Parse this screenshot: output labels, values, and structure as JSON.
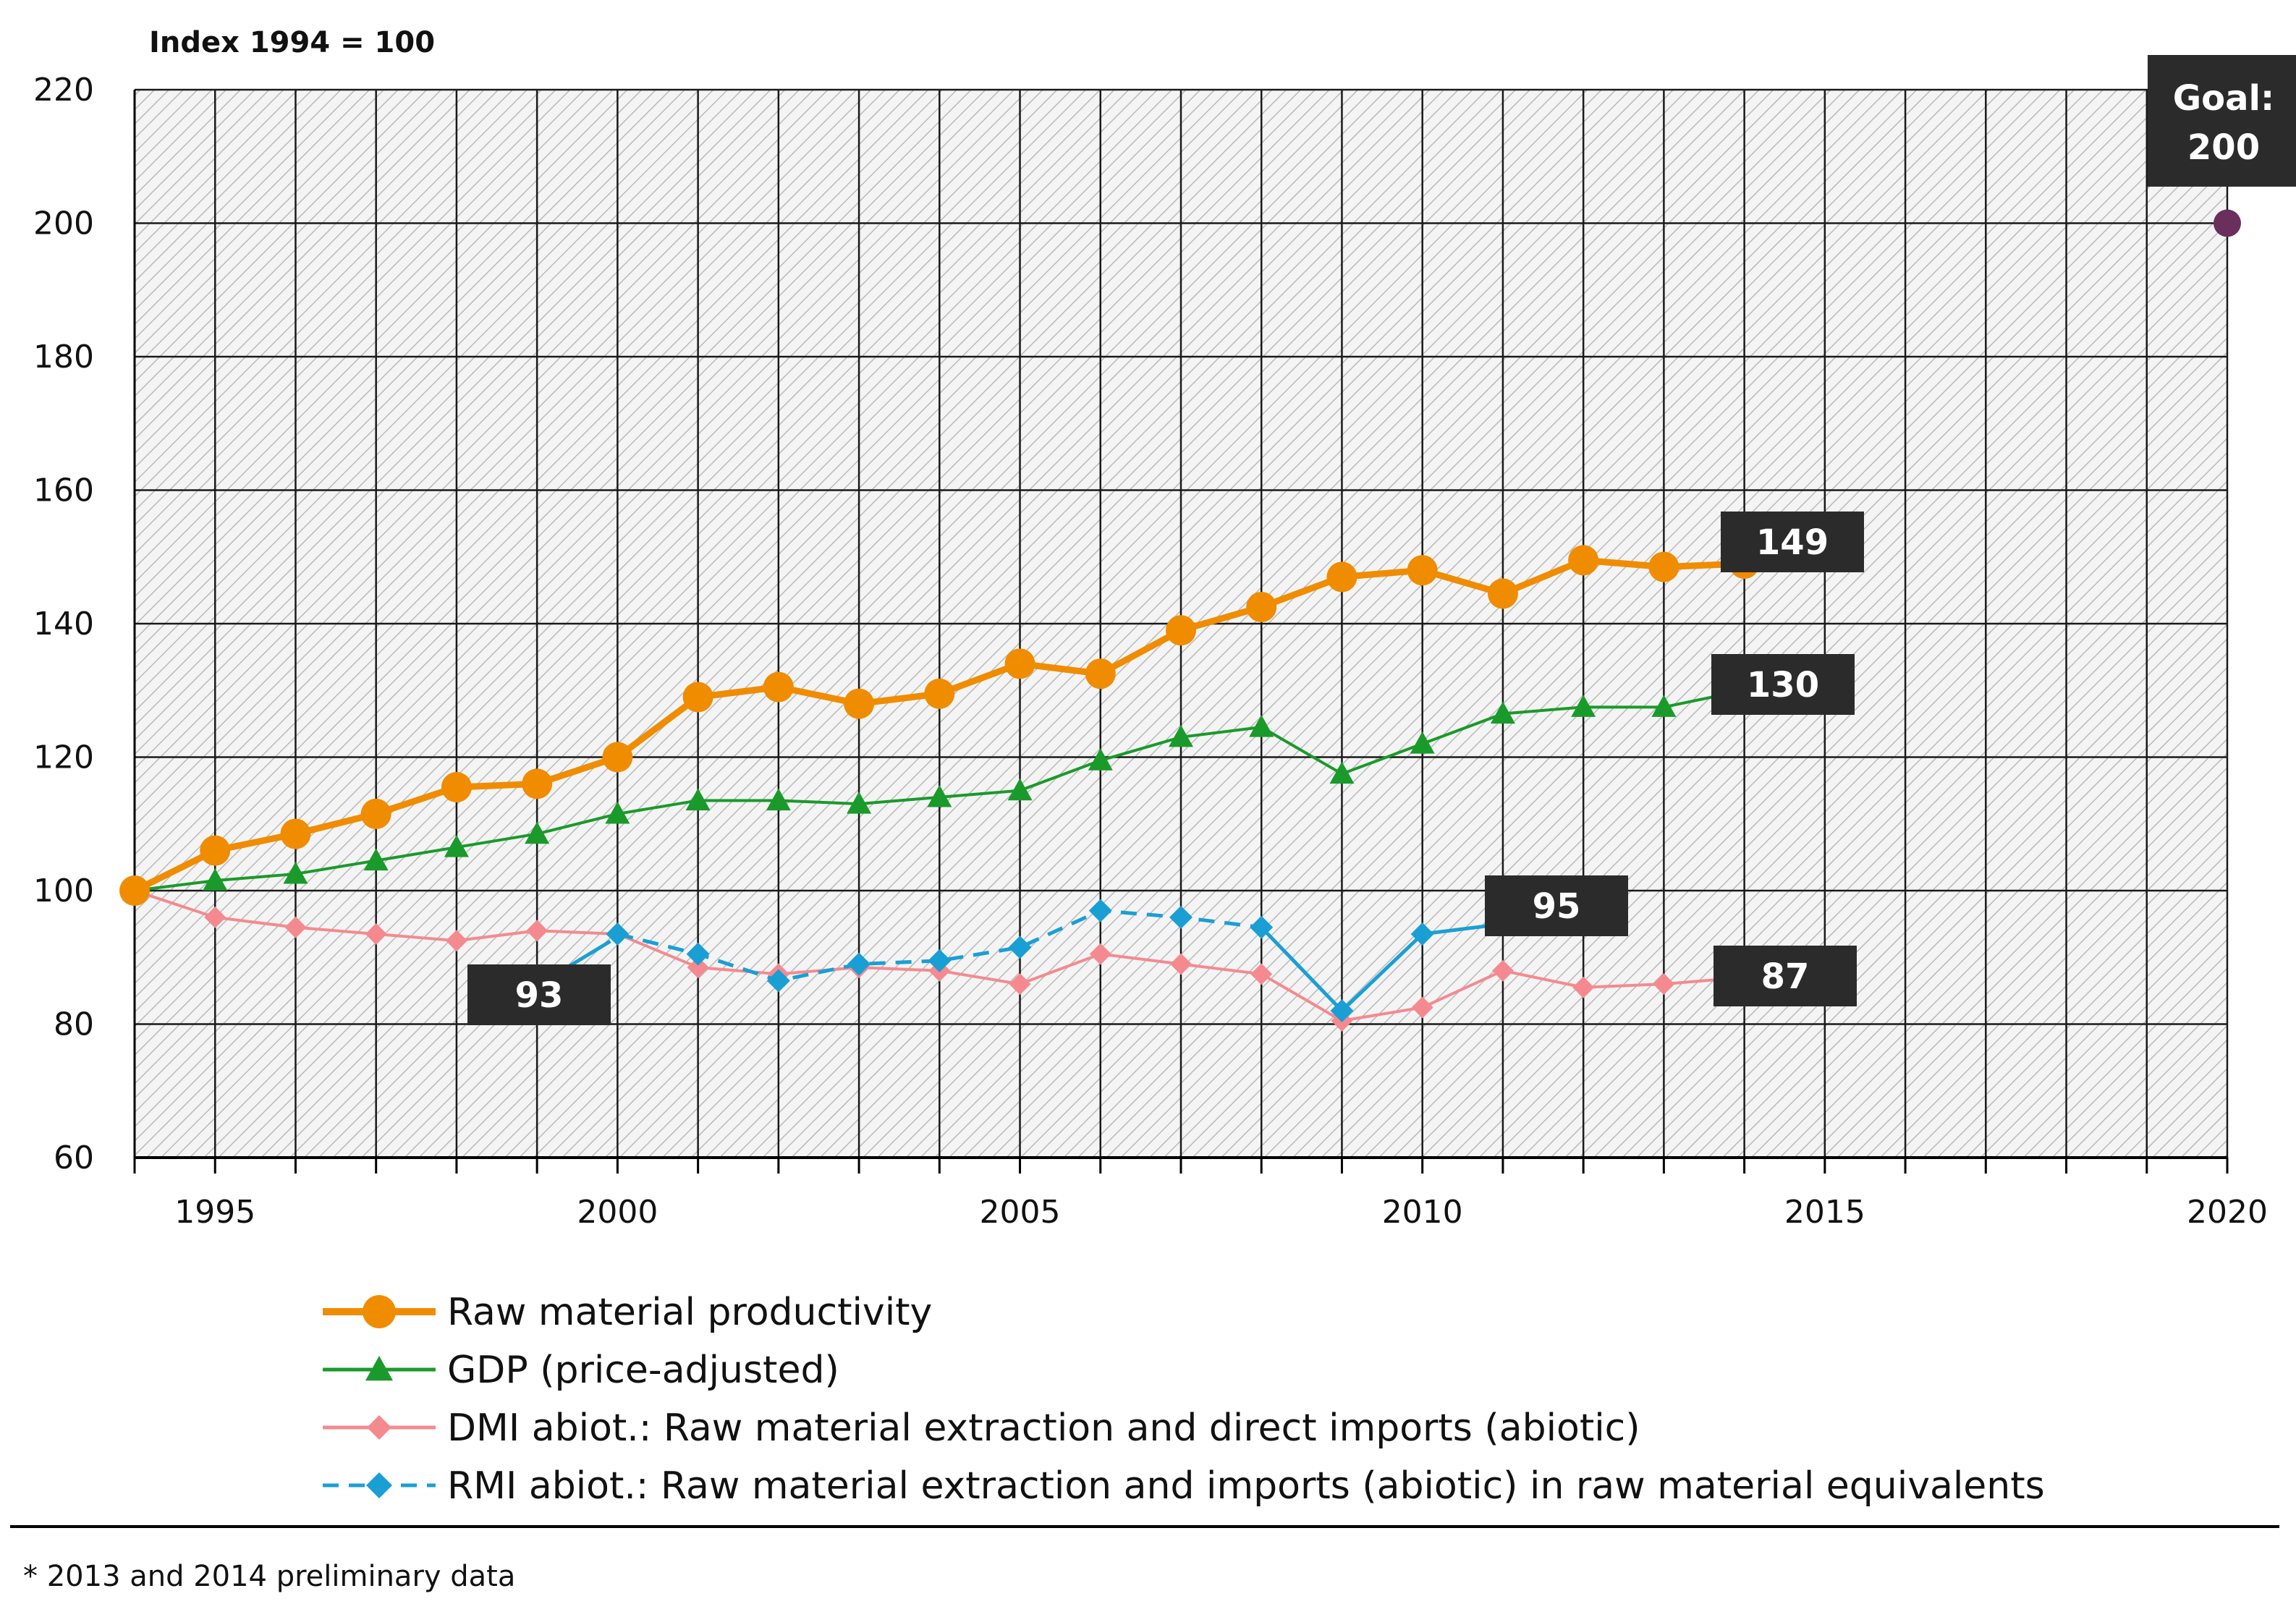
{
  "chart_data": {
    "type": "line",
    "unit_label": "Index 1994 = 100",
    "x": [
      1994,
      1995,
      1996,
      1997,
      1998,
      1999,
      2000,
      2001,
      2002,
      2003,
      2004,
      2005,
      2006,
      2007,
      2008,
      2009,
      2010,
      2011,
      2012,
      2013,
      2014
    ],
    "xlim": [
      1994,
      2020
    ],
    "ylim": [
      60,
      220
    ],
    "x_ticks": [
      1995,
      2000,
      2005,
      2010,
      2015,
      2020
    ],
    "y_ticks": [
      60,
      80,
      100,
      120,
      140,
      160,
      180,
      200,
      220
    ],
    "grid": true,
    "series": [
      {
        "key": "rmp",
        "name": "Raw material productivity",
        "color": "#f08c00",
        "marker": "circle",
        "values": [
          100,
          106,
          108.5,
          111.5,
          115.5,
          116,
          120,
          129,
          130.5,
          128,
          129.5,
          134,
          132.5,
          139,
          142.5,
          147,
          148,
          144.5,
          149.5,
          148.5,
          149
        ]
      },
      {
        "key": "gdp",
        "name": "GDP (price-adjusted)",
        "color": "#1a9a2a",
        "marker": "triangle",
        "values": [
          100,
          101.5,
          102.5,
          104.5,
          106.5,
          108.5,
          111.5,
          113.5,
          113.5,
          113,
          114,
          115,
          119.5,
          123,
          124.5,
          117.5,
          122,
          126.5,
          127.5,
          127.5,
          130
        ]
      },
      {
        "key": "dmi",
        "name": "DMI abiot.: Raw material extraction and direct imports (abiotic)",
        "color": "#f48a90",
        "marker": "diamond",
        "values": [
          100,
          96,
          94.5,
          93.5,
          92.5,
          94,
          93.5,
          88.5,
          87.5,
          88.5,
          88,
          86,
          90.5,
          89,
          87.5,
          80.5,
          82.5,
          88,
          85.5,
          86,
          87
        ]
      },
      {
        "key": "rmi",
        "name": "RMI abiot.: Raw material extraction and imports (abiotic) in raw material equivalents",
        "color": "#1a9fd4",
        "marker": "diamond",
        "dashed_until": 2008,
        "values": [
          null,
          null,
          null,
          null,
          null,
          null,
          93.5,
          90.5,
          86.5,
          89,
          89.5,
          91.5,
          97,
          96,
          94.5,
          82,
          93.5,
          95,
          null,
          null,
          null
        ]
      }
    ],
    "goal": {
      "year": 2020,
      "value": 200,
      "label_line1": "Goal:",
      "label_line2": "200",
      "color": "#6b2f5e"
    },
    "callouts": [
      {
        "series": "rmp",
        "year": 2014,
        "label": "149"
      },
      {
        "series": "gdp",
        "year": 2014,
        "label": "130"
      },
      {
        "series": "rmi",
        "year": 2011,
        "label": "95"
      },
      {
        "series": "dmi",
        "year": 2014,
        "label": "87"
      },
      {
        "series": "rmi",
        "year": 2000,
        "label": "93"
      }
    ],
    "footnote": "* 2013 and 2014 preliminary data"
  }
}
